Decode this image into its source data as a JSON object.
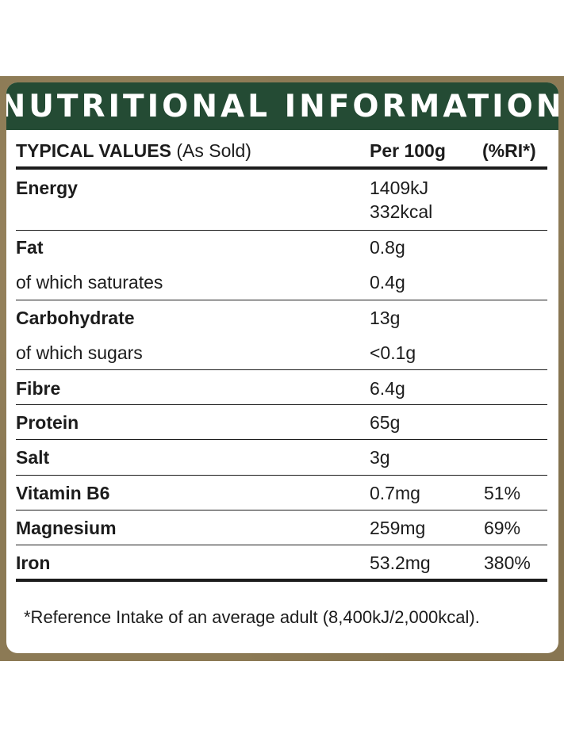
{
  "title": "NUTRITIONAL INFORMATION",
  "columns": {
    "label_bold": "TYPICAL VALUES",
    "label_rest": "(As Sold)",
    "per100": "Per 100g",
    "ri": "(%RI*)"
  },
  "rows": [
    {
      "name": "Energy",
      "value": "1409kJ",
      "value2": "332kcal",
      "ri": "",
      "bold": true
    },
    {
      "name": "Fat",
      "value": "0.8g",
      "ri": "",
      "bold": true
    },
    {
      "name": "of which saturates",
      "value": "0.4g",
      "ri": "",
      "bold": false
    },
    {
      "name": "Carbohydrate",
      "value": "13g",
      "ri": "",
      "bold": true
    },
    {
      "name": "of which sugars",
      "value": "<0.1g",
      "ri": "",
      "bold": false
    },
    {
      "name": "Fibre",
      "value": "6.4g",
      "ri": "",
      "bold": true
    },
    {
      "name": "Protein",
      "value": "65g",
      "ri": "",
      "bold": true
    },
    {
      "name": "Salt",
      "value": "3g",
      "ri": "",
      "bold": true
    },
    {
      "name": "Vitamin B6",
      "value": "0.7mg",
      "ri": "51%",
      "bold": true
    },
    {
      "name": "Magnesium",
      "value": "259mg",
      "ri": "69%",
      "bold": true
    },
    {
      "name": "Iron",
      "value": "53.2mg",
      "ri": "380%",
      "bold": true
    }
  ],
  "footnote": "*Reference Intake of an average adult (8,400kJ/2,000kcal).",
  "colors": {
    "header_bg": "#244b34",
    "frame": "#8c7a55"
  }
}
